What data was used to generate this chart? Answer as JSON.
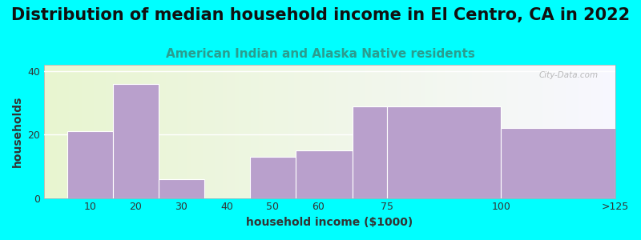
{
  "title": "Distribution of median household income in El Centro, CA in 2022",
  "subtitle": "American Indian and Alaska Native residents",
  "xlabel": "household income ($1000)",
  "ylabel": "households",
  "bar_labels": [
    "10",
    "20",
    "30",
    "40",
    "50",
    "60",
    "75",
    "100",
    ">125"
  ],
  "bar_values": [
    21,
    36,
    6,
    0,
    13,
    15,
    29,
    29,
    22
  ],
  "bar_color": "#b9a0cc",
  "ylim": [
    0,
    42
  ],
  "yticks": [
    0,
    20,
    40
  ],
  "background_color": "#00FFFF",
  "grid_color": "#ffffff",
  "title_fontsize": 15,
  "subtitle_fontsize": 11,
  "subtitle_color": "#2a9d8f",
  "axis_label_fontsize": 10,
  "tick_fontsize": 9,
  "watermark": "City-Data.com",
  "bar_lefts": [
    5,
    15,
    25,
    35,
    45,
    55,
    67.5,
    75,
    100
  ],
  "bar_widths": [
    10,
    10,
    10,
    10,
    10,
    12.5,
    7.5,
    25,
    25
  ],
  "xtick_positions": [
    10,
    20,
    30,
    40,
    50,
    60,
    75,
    100
  ],
  "xlim": [
    0,
    125
  ]
}
